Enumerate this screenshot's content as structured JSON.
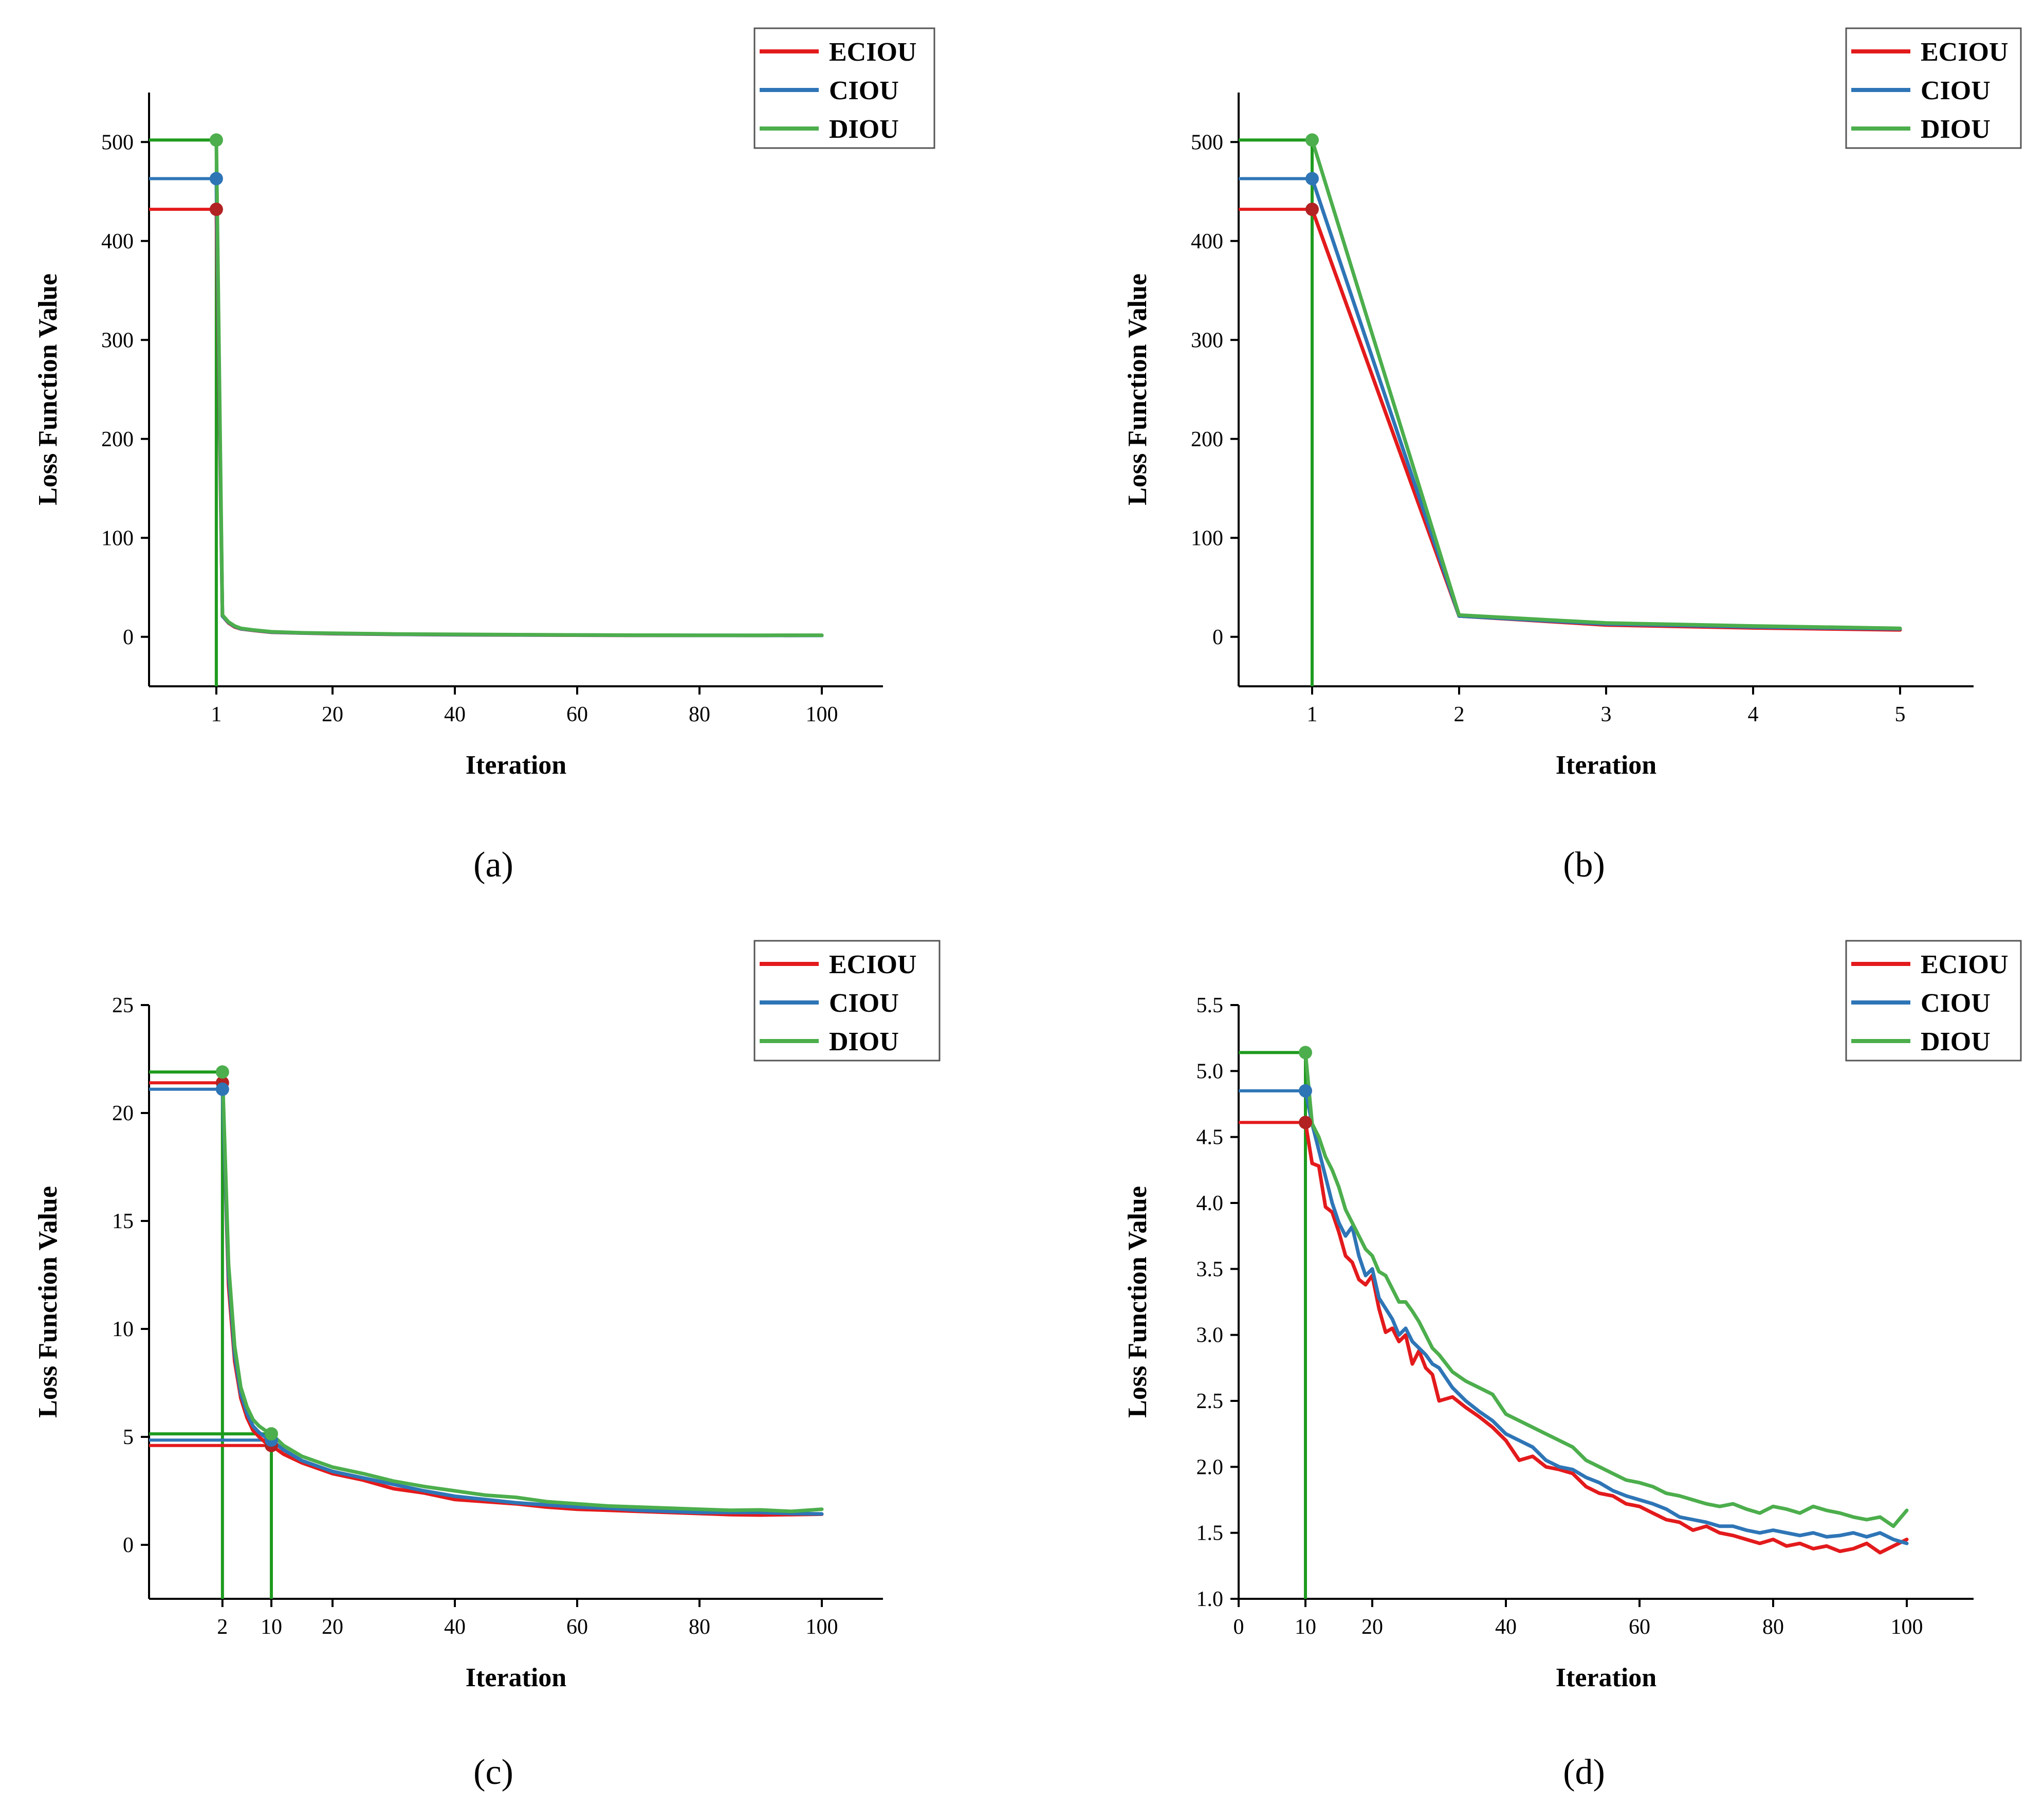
{
  "colors": {
    "ECIOU": "#e31a1c",
    "CIOU": "#2e75b6",
    "DIOU": "#4cae4c",
    "DIOU_guide": "#1e9b1e",
    "ECIOU_marker": "#b22222"
  },
  "chart_data": [
    {
      "id": "a",
      "type": "line",
      "caption": "(a)",
      "xlabel": "Iteration",
      "ylabel": "Loss Function Value",
      "xlim": [
        -10,
        110
      ],
      "ylim": [
        -50,
        550
      ],
      "xticks": [
        1,
        20,
        40,
        60,
        80,
        100
      ],
      "yticks": [
        0,
        100,
        200,
        300,
        400,
        500
      ],
      "legend": [
        "ECIOU",
        "CIOU",
        "DIOU"
      ],
      "legend_position": "top-right",
      "markers": [
        {
          "series": "ECIOU",
          "x": 1,
          "y": 432
        },
        {
          "series": "CIOU",
          "x": 1,
          "y": 463
        },
        {
          "series": "DIOU",
          "x": 1,
          "y": 502
        }
      ],
      "guides_x": [
        1
      ],
      "series": [
        {
          "name": "ECIOU",
          "x": [
            1,
            2,
            3,
            4,
            5,
            7,
            10,
            15,
            20,
            30,
            40,
            50,
            60,
            70,
            80,
            90,
            100
          ],
          "y": [
            432,
            21,
            14,
            10,
            8,
            6.5,
            4.6,
            3.8,
            3.2,
            2.5,
            2.1,
            1.9,
            1.7,
            1.5,
            1.45,
            1.4,
            1.42
          ]
        },
        {
          "name": "CIOU",
          "x": [
            1,
            2,
            3,
            4,
            5,
            7,
            10,
            15,
            20,
            30,
            40,
            50,
            60,
            70,
            80,
            90,
            100
          ],
          "y": [
            463,
            21,
            14.5,
            10.5,
            8.2,
            6.8,
            4.8,
            3.9,
            3.4,
            2.6,
            2.2,
            2.0,
            1.8,
            1.6,
            1.5,
            1.45,
            1.43
          ]
        },
        {
          "name": "DIOU",
          "x": [
            1,
            2,
            3,
            4,
            5,
            7,
            10,
            15,
            20,
            30,
            40,
            50,
            60,
            70,
            80,
            90,
            100
          ],
          "y": [
            502,
            22,
            15,
            11,
            8.6,
            7.0,
            5.1,
            4.1,
            3.6,
            2.9,
            2.5,
            2.2,
            1.9,
            1.7,
            1.6,
            1.6,
            1.65
          ]
        }
      ]
    },
    {
      "id": "b",
      "type": "line",
      "caption": "(b)",
      "xlabel": "Iteration",
      "ylabel": "Loss Function Value",
      "xlim": [
        0.5,
        5.5
      ],
      "ylim": [
        -50,
        550
      ],
      "xticks": [
        1,
        2,
        3,
        4,
        5
      ],
      "yticks": [
        0,
        100,
        200,
        300,
        400,
        500
      ],
      "legend": [
        "ECIOU",
        "CIOU",
        "DIOU"
      ],
      "legend_position": "top-right",
      "markers": [
        {
          "series": "ECIOU",
          "x": 1,
          "y": 432
        },
        {
          "series": "CIOU",
          "x": 1,
          "y": 463
        },
        {
          "series": "DIOU",
          "x": 1,
          "y": 502
        }
      ],
      "guides_x": [
        1
      ],
      "series": [
        {
          "name": "ECIOU",
          "x": [
            1,
            2,
            3,
            4,
            5
          ],
          "y": [
            432,
            21,
            12,
            9,
            7
          ]
        },
        {
          "name": "CIOU",
          "x": [
            1,
            2,
            3,
            4,
            5
          ],
          "y": [
            463,
            21,
            13,
            10,
            8
          ]
        },
        {
          "name": "DIOU",
          "x": [
            1,
            2,
            3,
            4,
            5
          ],
          "y": [
            502,
            22,
            14,
            11,
            8.6
          ]
        }
      ]
    },
    {
      "id": "c",
      "type": "line",
      "caption": "(c)",
      "xlabel": "Iteration",
      "ylabel": "Loss Function Value",
      "xlim": [
        -10,
        110
      ],
      "ylim": [
        -2.5,
        25
      ],
      "xticks": [
        2,
        10,
        20,
        40,
        60,
        80,
        100
      ],
      "yticks": [
        0,
        5,
        10,
        15,
        20,
        25
      ],
      "legend": [
        "ECIOU",
        "CIOU",
        "DIOU"
      ],
      "legend_position": "top-right",
      "markers": [
        {
          "series": "ECIOU",
          "x": 2,
          "y": 21.4
        },
        {
          "series": "CIOU",
          "x": 2,
          "y": 21.1
        },
        {
          "series": "DIOU",
          "x": 2,
          "y": 21.9
        },
        {
          "series": "ECIOU",
          "x": 10,
          "y": 4.6
        },
        {
          "series": "CIOU",
          "x": 10,
          "y": 4.85
        },
        {
          "series": "DIOU",
          "x": 10,
          "y": 5.14
        }
      ],
      "guides_x": [
        2,
        10
      ],
      "series": [
        {
          "name": "ECIOU",
          "x": [
            2,
            3,
            4,
            5,
            6,
            7,
            8,
            9,
            10,
            12,
            15,
            20,
            25,
            30,
            35,
            40,
            45,
            50,
            55,
            60,
            65,
            70,
            75,
            80,
            85,
            90,
            95,
            100
          ],
          "y": [
            21.4,
            12,
            8.5,
            6.8,
            5.9,
            5.3,
            5.0,
            4.75,
            4.6,
            4.2,
            3.8,
            3.3,
            3.0,
            2.6,
            2.4,
            2.1,
            2.0,
            1.9,
            1.75,
            1.65,
            1.6,
            1.55,
            1.5,
            1.45,
            1.4,
            1.38,
            1.4,
            1.42
          ]
        },
        {
          "name": "CIOU",
          "x": [
            2,
            3,
            4,
            5,
            6,
            7,
            8,
            9,
            10,
            12,
            15,
            20,
            25,
            30,
            35,
            40,
            45,
            50,
            55,
            60,
            65,
            70,
            75,
            80,
            85,
            90,
            95,
            100
          ],
          "y": [
            21.1,
            12.5,
            8.8,
            7.0,
            6.1,
            5.5,
            5.2,
            5.0,
            4.85,
            4.4,
            3.9,
            3.4,
            3.1,
            2.8,
            2.5,
            2.25,
            2.1,
            1.95,
            1.85,
            1.75,
            1.7,
            1.6,
            1.55,
            1.5,
            1.5,
            1.5,
            1.45,
            1.43
          ]
        },
        {
          "name": "DIOU",
          "x": [
            2,
            3,
            4,
            5,
            6,
            7,
            8,
            9,
            10,
            12,
            15,
            20,
            25,
            30,
            35,
            40,
            45,
            50,
            55,
            60,
            65,
            70,
            75,
            80,
            85,
            90,
            95,
            100
          ],
          "y": [
            21.9,
            13,
            9.2,
            7.3,
            6.4,
            5.8,
            5.5,
            5.3,
            5.14,
            4.6,
            4.1,
            3.6,
            3.3,
            2.95,
            2.7,
            2.5,
            2.3,
            2.2,
            2.0,
            1.9,
            1.8,
            1.75,
            1.7,
            1.65,
            1.6,
            1.62,
            1.55,
            1.65
          ]
        }
      ]
    },
    {
      "id": "d",
      "type": "line",
      "caption": "(d)",
      "xlabel": "Iteration",
      "ylabel": "Loss Function Value",
      "xlim": [
        0,
        110
      ],
      "ylim": [
        1.0,
        5.5
      ],
      "xticks": [
        0,
        10,
        20,
        40,
        60,
        80,
        100
      ],
      "yticks": [
        1.0,
        1.5,
        2.0,
        2.5,
        3.0,
        3.5,
        4.0,
        4.5,
        5.0,
        5.5
      ],
      "legend": [
        "ECIOU",
        "CIOU",
        "DIOU"
      ],
      "legend_position": "top-right",
      "markers": [
        {
          "series": "ECIOU",
          "x": 10,
          "y": 4.61
        },
        {
          "series": "CIOU",
          "x": 10,
          "y": 4.85
        },
        {
          "series": "DIOU",
          "x": 10,
          "y": 5.14
        }
      ],
      "guides_x": [
        10
      ],
      "series": [
        {
          "name": "ECIOU",
          "x": [
            10,
            11,
            12,
            13,
            14,
            15,
            16,
            17,
            18,
            19,
            20,
            21,
            22,
            23,
            24,
            25,
            26,
            27,
            28,
            29,
            30,
            32,
            34,
            36,
            38,
            40,
            42,
            44,
            46,
            48,
            50,
            52,
            54,
            56,
            58,
            60,
            62,
            64,
            66,
            68,
            70,
            72,
            74,
            76,
            78,
            80,
            82,
            84,
            86,
            88,
            90,
            92,
            94,
            96,
            98,
            100
          ],
          "y": [
            4.61,
            4.3,
            4.28,
            3.97,
            3.93,
            3.78,
            3.6,
            3.55,
            3.42,
            3.38,
            3.45,
            3.2,
            3.02,
            3.05,
            2.95,
            3.0,
            2.78,
            2.88,
            2.75,
            2.7,
            2.5,
            2.53,
            2.45,
            2.38,
            2.3,
            2.2,
            2.05,
            2.08,
            2.0,
            1.98,
            1.95,
            1.85,
            1.8,
            1.78,
            1.72,
            1.7,
            1.65,
            1.6,
            1.58,
            1.52,
            1.55,
            1.5,
            1.48,
            1.45,
            1.42,
            1.45,
            1.4,
            1.42,
            1.38,
            1.4,
            1.36,
            1.38,
            1.42,
            1.35,
            1.4,
            1.45
          ]
        },
        {
          "name": "CIOU",
          "x": [
            10,
            11,
            12,
            13,
            14,
            15,
            16,
            17,
            18,
            19,
            20,
            21,
            22,
            23,
            24,
            25,
            26,
            27,
            28,
            29,
            30,
            32,
            34,
            36,
            38,
            40,
            42,
            44,
            46,
            48,
            50,
            52,
            54,
            56,
            58,
            60,
            62,
            64,
            66,
            68,
            70,
            72,
            74,
            76,
            78,
            80,
            82,
            84,
            86,
            88,
            90,
            92,
            94,
            96,
            98,
            100
          ],
          "y": [
            4.85,
            4.6,
            4.4,
            4.2,
            4.0,
            3.85,
            3.75,
            3.82,
            3.6,
            3.45,
            3.5,
            3.28,
            3.2,
            3.12,
            3.0,
            3.05,
            2.95,
            2.9,
            2.85,
            2.78,
            2.75,
            2.6,
            2.5,
            2.42,
            2.35,
            2.25,
            2.2,
            2.15,
            2.05,
            2.0,
            1.98,
            1.92,
            1.88,
            1.82,
            1.78,
            1.75,
            1.72,
            1.68,
            1.62,
            1.6,
            1.58,
            1.55,
            1.55,
            1.52,
            1.5,
            1.52,
            1.5,
            1.48,
            1.5,
            1.47,
            1.48,
            1.5,
            1.47,
            1.5,
            1.45,
            1.42
          ]
        },
        {
          "name": "DIOU",
          "x": [
            10,
            11,
            12,
            13,
            14,
            15,
            16,
            17,
            18,
            19,
            20,
            21,
            22,
            23,
            24,
            25,
            26,
            27,
            28,
            29,
            30,
            32,
            34,
            36,
            38,
            40,
            42,
            44,
            46,
            48,
            50,
            52,
            54,
            56,
            58,
            60,
            62,
            64,
            66,
            68,
            70,
            72,
            74,
            76,
            78,
            80,
            82,
            84,
            86,
            88,
            90,
            92,
            94,
            96,
            98,
            100
          ],
          "y": [
            5.14,
            4.6,
            4.5,
            4.35,
            4.25,
            4.12,
            3.95,
            3.85,
            3.75,
            3.65,
            3.6,
            3.48,
            3.45,
            3.35,
            3.25,
            3.25,
            3.18,
            3.1,
            3.0,
            2.9,
            2.85,
            2.72,
            2.65,
            2.6,
            2.55,
            2.4,
            2.35,
            2.3,
            2.25,
            2.2,
            2.15,
            2.05,
            2.0,
            1.95,
            1.9,
            1.88,
            1.85,
            1.8,
            1.78,
            1.75,
            1.72,
            1.7,
            1.72,
            1.68,
            1.65,
            1.7,
            1.68,
            1.65,
            1.7,
            1.67,
            1.65,
            1.62,
            1.6,
            1.62,
            1.55,
            1.67
          ]
        }
      ]
    }
  ]
}
